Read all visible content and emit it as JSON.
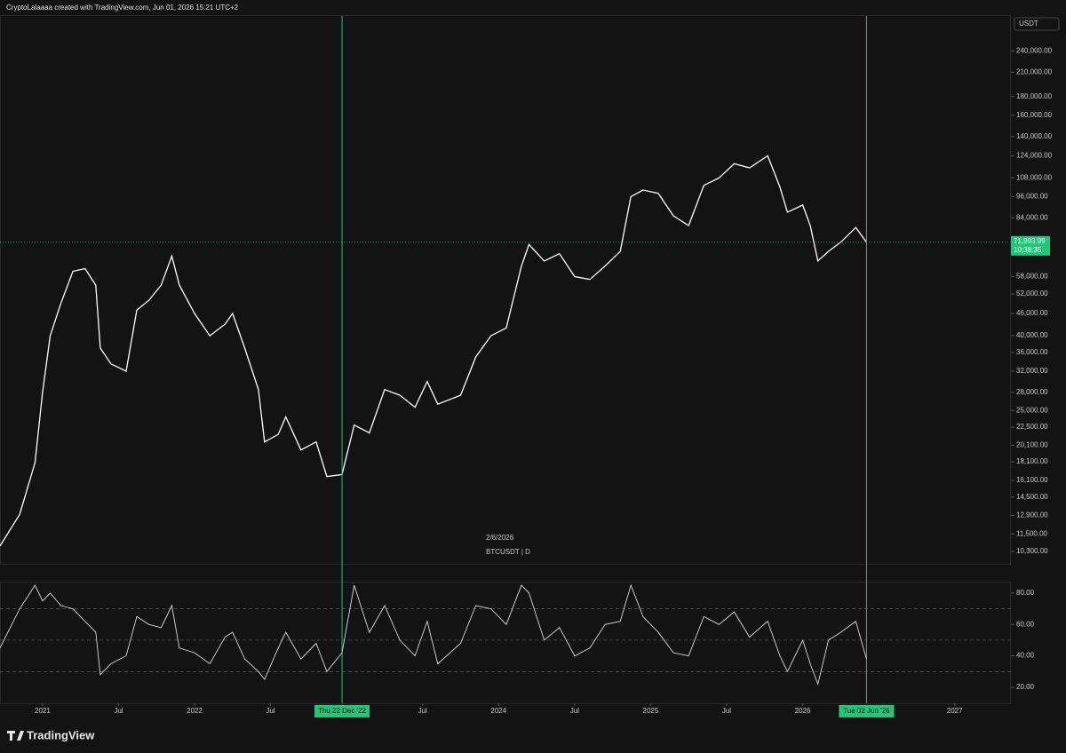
{
  "header": {
    "title": "CryptoLalaaaa created with TradingView.com, Jun 01, 2026 15:21 UTC+2"
  },
  "currency": "USDT",
  "watermark": {
    "date": "2/6/2026",
    "symbol": "BTCUSDT | D"
  },
  "footer": {
    "brand": "TradingView"
  },
  "chart_data": [
    {
      "type": "line",
      "log_scale": true,
      "x": [
        2020.72,
        2020.85,
        2020.95,
        2021.0,
        2021.05,
        2021.12,
        2021.2,
        2021.28,
        2021.35,
        2021.38,
        2021.45,
        2021.55,
        2021.62,
        2021.7,
        2021.78,
        2021.85,
        2021.9,
        2022.0,
        2022.1,
        2022.2,
        2022.25,
        2022.33,
        2022.42,
        2022.46,
        2022.55,
        2022.6,
        2022.7,
        2022.8,
        2022.87,
        2022.97,
        2023.05,
        2023.15,
        2023.25,
        2023.35,
        2023.45,
        2023.53,
        2023.6,
        2023.75,
        2023.85,
        2023.95,
        2024.05,
        2024.15,
        2024.2,
        2024.3,
        2024.4,
        2024.5,
        2024.6,
        2024.7,
        2024.8,
        2024.87,
        2024.95,
        2025.05,
        2025.15,
        2025.25,
        2025.35,
        2025.45,
        2025.55,
        2025.65,
        2025.77,
        2025.85,
        2025.9,
        2026.0,
        2026.05,
        2026.1,
        2026.17,
        2026.25,
        2026.35,
        2026.42
      ],
      "series": [
        {
          "color": "#ffffff",
          "values": [
            10650,
            13000,
            18000,
            28000,
            40000,
            49000,
            60000,
            61000,
            55000,
            37000,
            33500,
            32000,
            47000,
            50000,
            55000,
            66000,
            55000,
            46000,
            40000,
            43000,
            46000,
            37000,
            28500,
            20500,
            21500,
            24000,
            19500,
            20500,
            16500,
            16700,
            22800,
            21700,
            28500,
            27500,
            25500,
            30000,
            26000,
            27500,
            35000,
            40000,
            42000,
            62000,
            71000,
            64000,
            67000,
            58000,
            57000,
            62000,
            68000,
            96000,
            100000,
            98000,
            85000,
            80000,
            103000,
            108000,
            118000,
            115000,
            124000,
            102000,
            87000,
            91000,
            80000,
            64000,
            68000,
            72000,
            79000,
            72000
          ]
        }
      ],
      "xlim": [
        2020.72,
        2027.37
      ],
      "ylim": [
        9520,
        299000
      ],
      "yticks": [
        {
          "value": 10300,
          "label": "10,300.00"
        },
        {
          "value": 11500,
          "label": "11,500.00"
        },
        {
          "value": 12900,
          "label": "12,900.00"
        },
        {
          "value": 14500,
          "label": "14,500.00"
        },
        {
          "value": 16100,
          "label": "16,100.00"
        },
        {
          "value": 18100,
          "label": "18,100.00"
        },
        {
          "value": 20100,
          "label": "20,100.00"
        },
        {
          "value": 22500,
          "label": "22,500.00"
        },
        {
          "value": 25000,
          "label": "25,000.00"
        },
        {
          "value": 28000,
          "label": "28,000.00"
        },
        {
          "value": 32000,
          "label": "32,000.00"
        },
        {
          "value": 36000,
          "label": "36,000.00"
        },
        {
          "value": 40000,
          "label": "40,000.00"
        },
        {
          "value": 46000,
          "label": "46,000.00"
        },
        {
          "value": 52000,
          "label": "52,000.00"
        },
        {
          "value": 58000,
          "label": "58,000.00"
        },
        {
          "value": 84000,
          "label": "84,000.00"
        },
        {
          "value": 96000,
          "label": "96,000.00"
        },
        {
          "value": 108000,
          "label": "108,000.00"
        },
        {
          "value": 124000,
          "label": "124,000.00"
        },
        {
          "value": 140000,
          "label": "140,000.00"
        },
        {
          "value": 160000,
          "label": "160,000.00"
        },
        {
          "value": 180000,
          "label": "180,000.00"
        },
        {
          "value": 210000,
          "label": "210,000.00"
        },
        {
          "value": 240000,
          "label": "240,000.00"
        }
      ],
      "markers": [
        {
          "value": 2022.97,
          "label": "Thu 22 Dec '22"
        },
        {
          "value": 2026.42,
          "label": "Tue 02 Jun '26"
        }
      ],
      "marker_color": "#1fc776",
      "last_price": {
        "value": 71993.99,
        "label": "71,993.99"
      },
      "countdown": "10:38:35"
    },
    {
      "type": "line",
      "x": [
        2020.72,
        2020.85,
        2020.95,
        2021.0,
        2021.05,
        2021.12,
        2021.2,
        2021.28,
        2021.35,
        2021.38,
        2021.45,
        2021.55,
        2021.62,
        2021.7,
        2021.78,
        2021.85,
        2021.9,
        2022.0,
        2022.1,
        2022.2,
        2022.25,
        2022.33,
        2022.42,
        2022.46,
        2022.55,
        2022.6,
        2022.7,
        2022.8,
        2022.87,
        2022.97,
        2023.05,
        2023.15,
        2023.25,
        2023.35,
        2023.45,
        2023.53,
        2023.6,
        2023.75,
        2023.85,
        2023.95,
        2024.05,
        2024.15,
        2024.2,
        2024.3,
        2024.4,
        2024.5,
        2024.6,
        2024.7,
        2024.8,
        2024.87,
        2024.95,
        2025.05,
        2025.15,
        2025.25,
        2025.35,
        2025.45,
        2025.55,
        2025.65,
        2025.77,
        2025.85,
        2025.9,
        2026.0,
        2026.05,
        2026.1,
        2026.17,
        2026.25,
        2026.35,
        2026.42
      ],
      "series": [
        {
          "color": "#d9d9d9",
          "values": [
            45,
            70,
            85,
            75,
            80,
            72,
            70,
            62,
            55,
            28,
            35,
            40,
            65,
            60,
            58,
            72,
            45,
            42,
            35,
            52,
            55,
            38,
            30,
            25,
            45,
            55,
            38,
            48,
            30,
            42,
            85,
            55,
            72,
            50,
            40,
            62,
            35,
            48,
            72,
            70,
            60,
            85,
            80,
            50,
            58,
            40,
            45,
            60,
            62,
            85,
            65,
            55,
            42,
            40,
            65,
            60,
            68,
            52,
            62,
            40,
            30,
            50,
            35,
            22,
            50,
            55,
            62,
            38
          ]
        }
      ],
      "xlim": [
        2020.72,
        2027.37
      ],
      "ylim": [
        9.8,
        87.3
      ],
      "yticks": [
        {
          "value": 20,
          "label": "20.00"
        },
        {
          "value": 40,
          "label": "40.00"
        },
        {
          "value": 60,
          "label": "60.00"
        },
        {
          "value": 80,
          "label": "80.00"
        }
      ],
      "levels": [
        70,
        50,
        30
      ],
      "xticks": [
        2021,
        {
          "value": 2021.5,
          "label": "Jul"
        },
        2022,
        {
          "value": 2022.5,
          "label": "Jul"
        },
        {
          "value": 2023.5,
          "label": "Jul"
        },
        2024,
        {
          "value": 2024.5,
          "label": "Jul"
        },
        2025,
        {
          "value": 2025.5,
          "label": "Jul"
        },
        2026,
        2027
      ]
    }
  ]
}
